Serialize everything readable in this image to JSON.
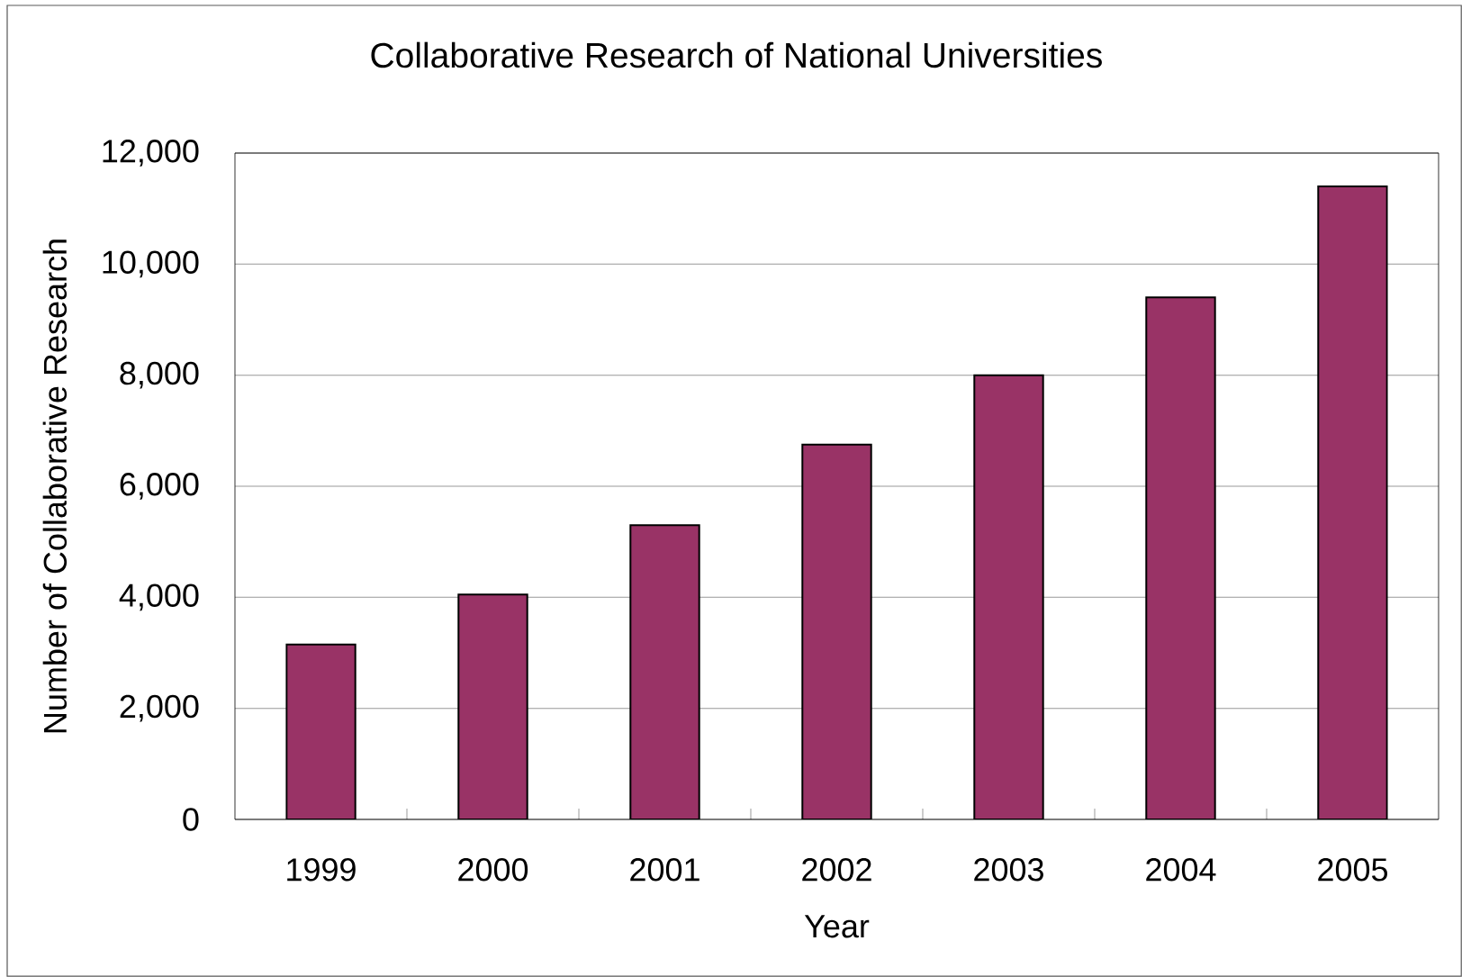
{
  "chart_data": {
    "type": "bar",
    "title": "Collaborative Research of National Universities",
    "xlabel": "Year",
    "ylabel": "Number of Collaborative Research",
    "categories": [
      "1999",
      "2000",
      "2001",
      "2002",
      "2003",
      "2004",
      "2005"
    ],
    "values": [
      3150,
      4050,
      5300,
      6750,
      8000,
      9400,
      11400
    ],
    "color": "#993366",
    "ylim": [
      0,
      12000
    ],
    "yticks": [
      {
        "value": 0,
        "label": "0"
      },
      {
        "value": 2000,
        "label": "2,000"
      },
      {
        "value": 4000,
        "label": "4,000"
      },
      {
        "value": 6000,
        "label": "6,000"
      },
      {
        "value": 8000,
        "label": "8,000"
      },
      {
        "value": 10000,
        "label": "10,000"
      },
      {
        "value": 12000,
        "label": "12,000"
      }
    ],
    "grid": "y"
  }
}
